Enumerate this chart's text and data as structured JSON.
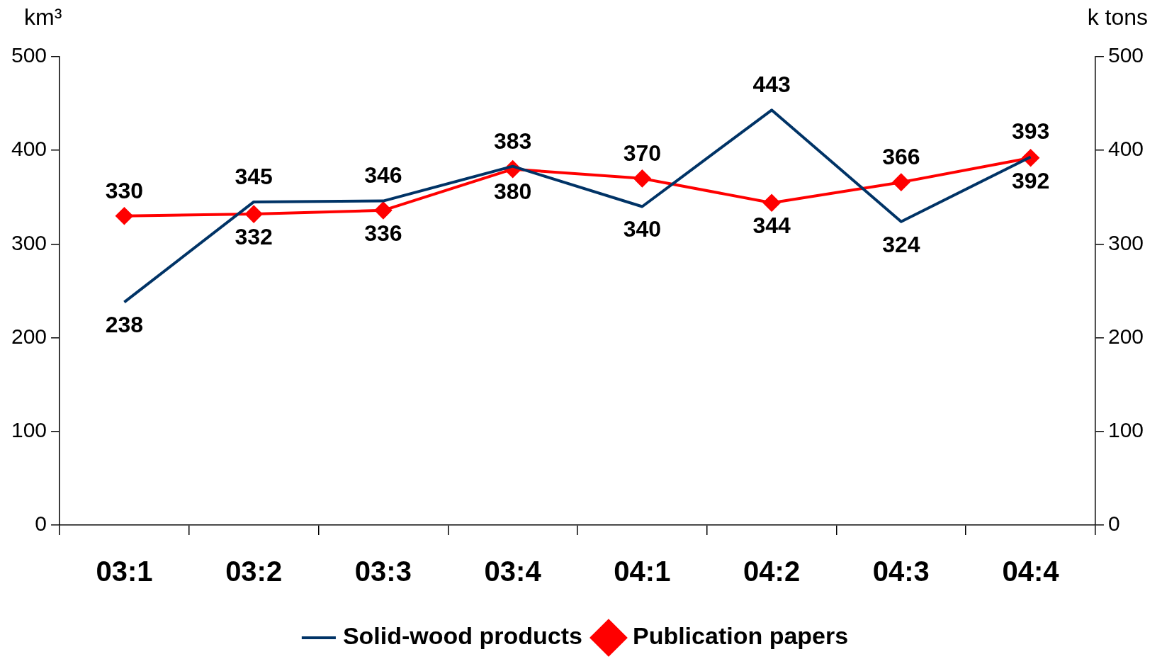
{
  "chart_data": {
    "type": "line",
    "categories": [
      "03:1",
      "03:2",
      "03:3",
      "03:4",
      "04:1",
      "04:2",
      "04:3",
      "04:4"
    ],
    "series": [
      {
        "name": "Publication papers",
        "color": "#ff0000",
        "marker": "diamond",
        "values": [
          330,
          332,
          336,
          380,
          370,
          344,
          366,
          392
        ]
      },
      {
        "name": "Solid-wood products",
        "color": "#003366",
        "marker": "none",
        "values": [
          238,
          345,
          346,
          383,
          340,
          443,
          324,
          393
        ]
      }
    ],
    "ylabel": "km³",
    "y2label": "k tons",
    "ylim": [
      0,
      500
    ],
    "yticks": [
      0,
      100,
      200,
      300,
      400,
      500
    ],
    "y2lim": [
      0,
      500
    ],
    "y2ticks": [
      0,
      100,
      200,
      300,
      400,
      500
    ],
    "grid": false,
    "legend": "bottom",
    "data_labels": true
  }
}
